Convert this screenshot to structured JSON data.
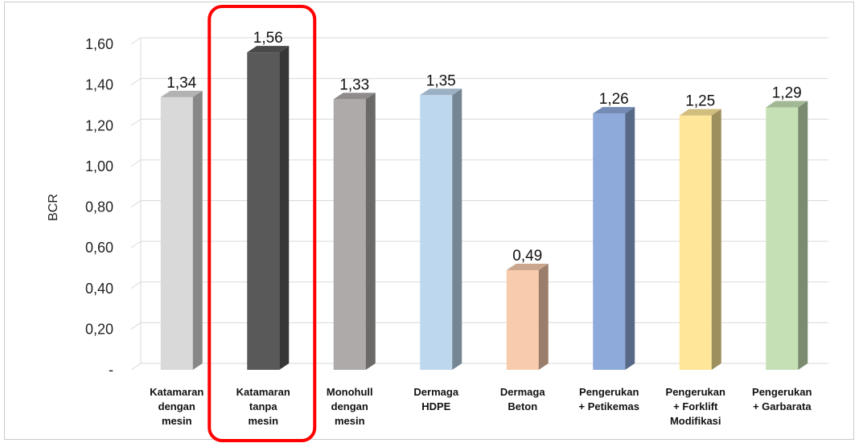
{
  "chart_data": {
    "type": "bar",
    "title": "",
    "xlabel": "",
    "ylabel": "BCR",
    "ylim": [
      0,
      1.6
    ],
    "y_ticks": [
      "-",
      "0,20",
      "0,40",
      "0,60",
      "0,80",
      "1,00",
      "1,20",
      "1,40",
      "1,60"
    ],
    "grid": true,
    "style": "3d-column",
    "categories": [
      [
        "Katamaran",
        "dengan",
        "mesin"
      ],
      [
        "Katamaran",
        "tanpa",
        "mesin"
      ],
      [
        "Monohull",
        "dengan",
        "mesin"
      ],
      [
        "Dermaga",
        "HDPE"
      ],
      [
        "Dermaga",
        "Beton"
      ],
      [
        "Pengerukan",
        "+ Petikemas"
      ],
      [
        "Pengerukan",
        "+ Forklift",
        "Modifikasi"
      ],
      [
        "Pengerukan",
        "+ Garbarata"
      ]
    ],
    "values": [
      1.34,
      1.56,
      1.33,
      1.35,
      0.49,
      1.26,
      1.25,
      1.29
    ],
    "value_labels": [
      "1,34",
      "1,56",
      "1,33",
      "1,35",
      "0,49",
      "1,26",
      "1,25",
      "1,29"
    ],
    "colors": [
      "#d9d9d9",
      "#595959",
      "#aeaaaa",
      "#bdd7ee",
      "#f8cbad",
      "#8eaadb",
      "#ffe699",
      "#c5e0b4"
    ],
    "highlight": {
      "category_index": 1,
      "color": "#ff0000"
    }
  }
}
